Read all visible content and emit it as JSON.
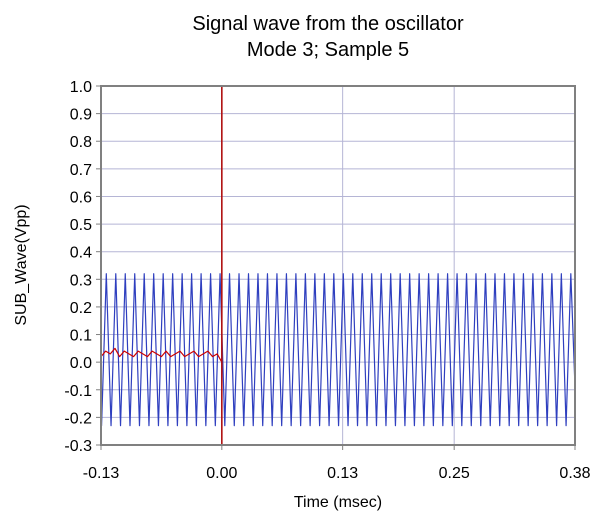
{
  "chart_data": {
    "type": "line",
    "title": "Signal wave from the oscillator",
    "subtitle": "Mode 3; Sample 5",
    "xlabel": "Time (msec)",
    "ylabel": "SUB_Wave(Vpp)",
    "xlim": [
      -0.13,
      0.38
    ],
    "ylim": [
      -0.3,
      1.0
    ],
    "x_ticks": [
      "-0.13",
      "0.00",
      "0.13",
      "0.25",
      "0.38"
    ],
    "y_ticks": [
      "1.0",
      "0.9",
      "0.8",
      "0.7",
      "0.6",
      "0.5",
      "0.4",
      "0.3",
      "0.2",
      "0.1",
      "0.0",
      "-0.1",
      "-0.2",
      "-0.3"
    ],
    "grid": true,
    "legend": "none",
    "trigger_marker_x": 0.0,
    "series": [
      {
        "color": "#2f3fbf",
        "x": [
          -0.13,
          -0.1294,
          -0.1243,
          -0.1192,
          -0.1141,
          -0.109,
          -0.1039,
          -0.0988,
          -0.0937,
          -0.0886,
          -0.0835,
          -0.0784,
          -0.0733,
          -0.0682,
          -0.0631,
          -0.058,
          -0.0529,
          -0.0478,
          -0.0427,
          -0.0376,
          -0.0325,
          -0.0274,
          -0.0223,
          -0.0172,
          -0.0121,
          -0.007,
          -0.0019,
          0.0032,
          0.0083,
          0.0134,
          0.0185,
          0.0236,
          0.0287,
          0.0338,
          0.0389,
          0.044,
          0.0491,
          0.0542,
          0.0593,
          0.0644,
          0.0695,
          0.0746,
          0.0797,
          0.0848,
          0.0899,
          0.095,
          0.1001,
          0.1052,
          0.1103,
          0.1154,
          0.1205,
          0.1256,
          0.1307,
          0.1358,
          0.1409,
          0.146,
          0.1511,
          0.1562,
          0.1613,
          0.1664,
          0.1715,
          0.1766,
          0.1817,
          0.1868,
          0.1919,
          0.197,
          0.2021,
          0.2072,
          0.2123,
          0.2174,
          0.2225,
          0.2276,
          0.2327,
          0.2378,
          0.2429,
          0.248,
          0.2531,
          0.2582,
          0.2633,
          0.2684,
          0.2735,
          0.2786,
          0.2837,
          0.2888,
          0.2939,
          0.299,
          0.3041,
          0.3092,
          0.3143,
          0.3194,
          0.3245,
          0.3296,
          0.3347,
          0.3398,
          0.3449,
          0.35,
          0.3551,
          0.3602,
          0.3653,
          0.3704,
          0.3755,
          0.38
        ],
        "y": [
          0.02,
          -0.23,
          0.32,
          -0.23,
          0.32,
          -0.23,
          0.32,
          -0.23,
          0.32,
          -0.23,
          0.32,
          -0.23,
          0.32,
          -0.23,
          0.32,
          -0.23,
          0.32,
          -0.23,
          0.32,
          -0.23,
          0.32,
          -0.23,
          0.32,
          -0.23,
          0.32,
          -0.23,
          0.32,
          -0.23,
          0.32,
          -0.23,
          0.32,
          -0.23,
          0.32,
          -0.23,
          0.32,
          -0.23,
          0.32,
          -0.23,
          0.32,
          -0.23,
          0.32,
          -0.23,
          0.32,
          -0.23,
          0.32,
          -0.23,
          0.32,
          -0.23,
          0.32,
          -0.23,
          0.32,
          -0.23,
          0.32,
          -0.23,
          0.32,
          -0.23,
          0.32,
          -0.23,
          0.32,
          -0.23,
          0.32,
          -0.23,
          0.32,
          -0.23,
          0.32,
          -0.23,
          0.32,
          -0.23,
          0.32,
          -0.23,
          0.32,
          -0.23,
          0.32,
          -0.23,
          0.32,
          -0.23,
          0.32,
          -0.23,
          0.32,
          -0.23,
          0.32,
          -0.23,
          0.32,
          -0.23,
          0.32,
          -0.23,
          0.32,
          -0.23,
          0.32,
          -0.23,
          0.32,
          -0.23,
          0.32,
          -0.23,
          0.32,
          -0.23,
          0.32,
          -0.23,
          0.32,
          -0.23,
          0.32,
          -0.09
        ]
      },
      {
        "color": "#cc0000",
        "x": [
          -0.13,
          -0.125,
          -0.12,
          -0.115,
          -0.11,
          -0.105,
          -0.1,
          -0.095,
          -0.09,
          -0.085,
          -0.08,
          -0.075,
          -0.07,
          -0.065,
          -0.06,
          -0.055,
          -0.05,
          -0.045,
          -0.04,
          -0.035,
          -0.03,
          -0.025,
          -0.02,
          -0.015,
          -0.01,
          -0.005,
          0.0
        ],
        "y": [
          0.02,
          0.04,
          0.03,
          0.05,
          0.02,
          0.04,
          0.03,
          0.02,
          0.04,
          0.03,
          0.02,
          0.04,
          0.03,
          0.02,
          0.04,
          0.02,
          0.03,
          0.04,
          0.02,
          0.03,
          0.04,
          0.02,
          0.03,
          0.04,
          0.02,
          0.03,
          0.0
        ]
      }
    ]
  },
  "colors": {
    "plot_background": "#ffffff",
    "grid": "#b5b5d5",
    "frame": "#808080",
    "trigger_marker": "#b01010"
  }
}
